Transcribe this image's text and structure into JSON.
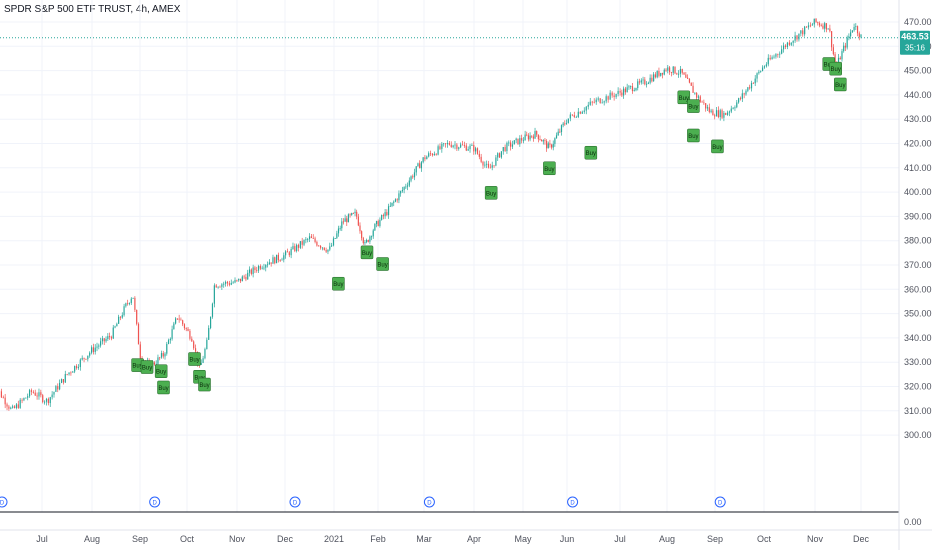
{
  "header": {
    "title": "SPDR S&P 500 ETF TRUST, 4h, AMEX"
  },
  "price_badge": {
    "price": "463.53",
    "countdown": "35:16",
    "color": "#26a69a"
  },
  "colors": {
    "up": "#26a69a",
    "down": "#ef5350",
    "buy_bg": "#4caf50",
    "buy_border": "#1b5e20",
    "dividend": "#2962ff",
    "grid": "#f0f3fa"
  },
  "chart_data": {
    "type": "candlestick",
    "title": "SPDR S&P 500 ETF TRUST, 4h, AMEX",
    "y_ticks": [
      "470.00",
      "460.00",
      "450.00",
      "440.00",
      "430.00",
      "420.00",
      "410.00",
      "400.00",
      "390.00",
      "380.00",
      "370.00",
      "360.00",
      "350.00",
      "340.00",
      "330.00",
      "320.00",
      "310.00",
      "300.00"
    ],
    "ylim": [
      295,
      475
    ],
    "x_ticks": [
      "Jul",
      "Aug",
      "Sep",
      "Oct",
      "Nov",
      "Dec",
      "2021",
      "Feb",
      "Mar",
      "Apr",
      "May",
      "Jun",
      "Jul",
      "Aug",
      "Sep",
      "Oct",
      "Nov",
      "Dec"
    ],
    "lower_pane": {
      "y_tick": "0.00"
    },
    "last_price": 463.53,
    "price_path": [
      {
        "m": 0.0,
        "p": 322
      },
      {
        "m": 0.4,
        "p": 310
      },
      {
        "m": 0.8,
        "p": 318
      },
      {
        "m": 1.1,
        "p": 314
      },
      {
        "m": 1.5,
        "p": 325
      },
      {
        "m": 2.0,
        "p": 335
      },
      {
        "m": 2.4,
        "p": 341
      },
      {
        "m": 2.7,
        "p": 353
      },
      {
        "m": 2.85,
        "p": 358
      },
      {
        "m": 3.0,
        "p": 333
      },
      {
        "m": 3.2,
        "p": 328
      },
      {
        "m": 3.5,
        "p": 333
      },
      {
        "m": 3.8,
        "p": 349
      },
      {
        "m": 4.1,
        "p": 340
      },
      {
        "m": 4.25,
        "p": 327
      },
      {
        "m": 4.4,
        "p": 338
      },
      {
        "m": 4.55,
        "p": 362
      },
      {
        "m": 5.0,
        "p": 363
      },
      {
        "m": 5.5,
        "p": 370
      },
      {
        "m": 6.0,
        "p": 374
      },
      {
        "m": 6.5,
        "p": 381
      },
      {
        "m": 6.9,
        "p": 376
      },
      {
        "m": 7.2,
        "p": 388
      },
      {
        "m": 7.5,
        "p": 391
      },
      {
        "m": 7.7,
        "p": 378
      },
      {
        "m": 7.9,
        "p": 385
      },
      {
        "m": 8.2,
        "p": 392
      },
      {
        "m": 8.5,
        "p": 400
      },
      {
        "m": 9.0,
        "p": 414
      },
      {
        "m": 9.5,
        "p": 420
      },
      {
        "m": 10.0,
        "p": 418
      },
      {
        "m": 10.3,
        "p": 409
      },
      {
        "m": 10.6,
        "p": 418
      },
      {
        "m": 11.0,
        "p": 422
      },
      {
        "m": 11.3,
        "p": 424
      },
      {
        "m": 11.6,
        "p": 418
      },
      {
        "m": 12.0,
        "p": 430
      },
      {
        "m": 12.5,
        "p": 437
      },
      {
        "m": 13.0,
        "p": 441
      },
      {
        "m": 13.5,
        "p": 445
      },
      {
        "m": 14.0,
        "p": 451
      },
      {
        "m": 14.3,
        "p": 449
      },
      {
        "m": 14.6,
        "p": 440
      },
      {
        "m": 14.9,
        "p": 433
      },
      {
        "m": 15.2,
        "p": 432
      },
      {
        "m": 15.5,
        "p": 438
      },
      {
        "m": 16.0,
        "p": 452
      },
      {
        "m": 16.5,
        "p": 462
      },
      {
        "m": 17.0,
        "p": 470
      },
      {
        "m": 17.3,
        "p": 468
      },
      {
        "m": 17.45,
        "p": 451
      },
      {
        "m": 17.6,
        "p": 458
      },
      {
        "m": 17.85,
        "p": 469
      },
      {
        "m": 18.0,
        "p": 464
      }
    ],
    "buy_signals": [
      {
        "m": 2.95,
        "p": 328.8,
        "label": "Buy"
      },
      {
        "m": 3.15,
        "p": 328.0,
        "label": "Buy"
      },
      {
        "m": 3.45,
        "p": 326.3,
        "label": "Buy"
      },
      {
        "m": 3.5,
        "p": 319.6,
        "label": "Buy"
      },
      {
        "m": 4.15,
        "p": 331.3,
        "label": "Buy"
      },
      {
        "m": 4.25,
        "p": 324.0,
        "label": "Buy"
      },
      {
        "m": 4.35,
        "p": 320.8,
        "label": "Buy"
      },
      {
        "m": 7.1,
        "p": 362.3,
        "label": "Buy"
      },
      {
        "m": 7.75,
        "p": 375.2,
        "label": "Buy"
      },
      {
        "m": 8.1,
        "p": 370.4,
        "label": "Buy"
      },
      {
        "m": 10.35,
        "p": 399.7,
        "label": "Buy"
      },
      {
        "m": 11.6,
        "p": 409.8,
        "label": "Buy"
      },
      {
        "m": 12.45,
        "p": 416.2,
        "label": "Buy"
      },
      {
        "m": 14.35,
        "p": 439.0,
        "label": "Buy"
      },
      {
        "m": 14.55,
        "p": 435.4,
        "label": "Buy"
      },
      {
        "m": 14.55,
        "p": 423.3,
        "label": "Buy"
      },
      {
        "m": 15.05,
        "p": 418.8,
        "label": "Buy"
      },
      {
        "m": 17.3,
        "p": 452.7,
        "label": "Buy"
      },
      {
        "m": 17.45,
        "p": 450.8,
        "label": "Buy"
      },
      {
        "m": 17.55,
        "p": 444.3,
        "label": "Buy"
      }
    ],
    "dividends": [
      {
        "m": 0.0,
        "label": "D"
      },
      {
        "m": 3.1,
        "label": "D"
      },
      {
        "m": 6.0,
        "label": "D"
      },
      {
        "m": 8.9,
        "label": "D"
      },
      {
        "m": 11.9,
        "label": "D"
      },
      {
        "m": 14.9,
        "label": "D"
      }
    ]
  }
}
